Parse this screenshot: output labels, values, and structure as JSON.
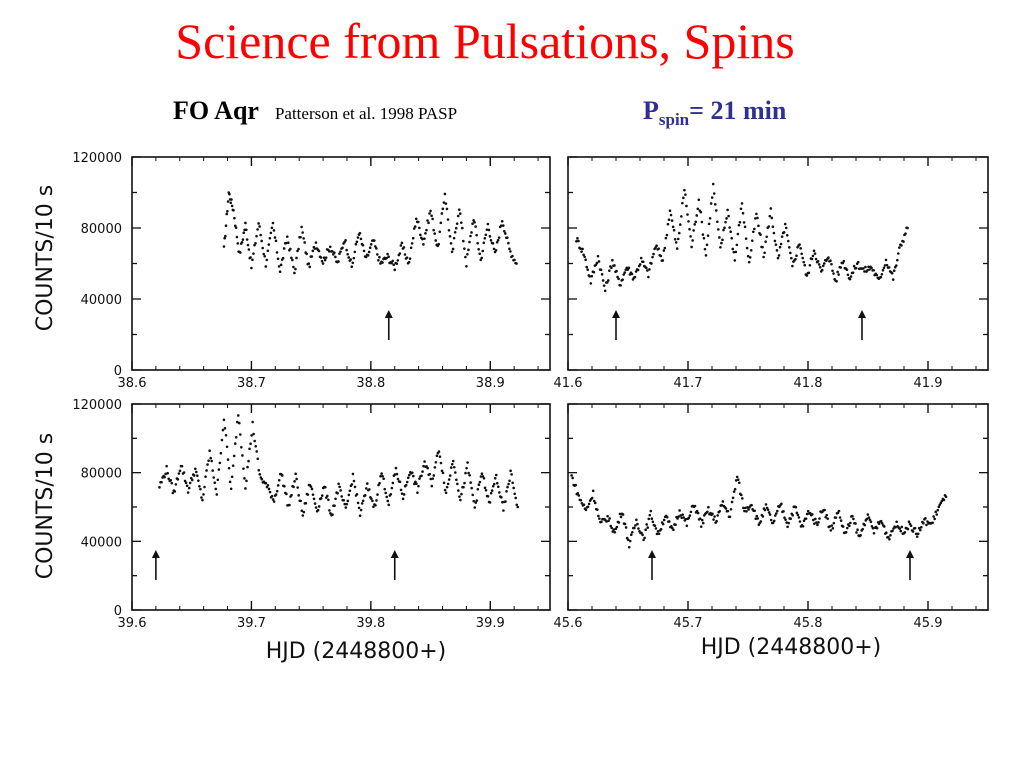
{
  "header": {
    "title": "Science from Pulsations, Spins",
    "object": "FO Aqr",
    "reference": "Patterson et al. 1998 PASP",
    "period_symbol": "P",
    "period_subscript": "spin",
    "period_value": "= 21 min"
  },
  "colors": {
    "title": "#ff0000",
    "period": "#2e3192",
    "ink": "#111111"
  },
  "chart_data": [
    {
      "type": "scatter",
      "panel": "top-left",
      "xlim": [
        38.6,
        38.95
      ],
      "ylim": [
        0,
        120000
      ],
      "xticks": [
        38.6,
        38.7,
        38.8,
        38.9
      ],
      "xtick_labels": [
        "38.6",
        "38.7",
        "38.8",
        "38.9"
      ],
      "yticks": [
        0,
        40000,
        80000,
        120000
      ],
      "ytick_labels": [
        "0",
        "40000",
        "80000",
        "120000"
      ],
      "ylabel": "COUNTS/10  s",
      "arrows_x": [
        38.815
      ],
      "x": [
        38.677,
        38.681,
        38.685,
        38.69,
        38.695,
        38.7,
        38.706,
        38.712,
        38.718,
        38.724,
        38.73,
        38.736,
        38.742,
        38.748,
        38.754,
        38.76,
        38.766,
        38.772,
        38.778,
        38.784,
        38.79,
        38.796,
        38.802,
        38.808,
        38.814,
        38.82,
        38.826,
        38.832,
        38.838,
        38.844,
        38.85,
        38.856,
        38.862,
        38.868,
        38.874,
        38.88,
        38.886,
        38.892,
        38.898,
        38.904,
        38.91,
        38.916,
        38.922
      ],
      "y": [
        68000,
        100000,
        90000,
        65000,
        82000,
        58000,
        83000,
        60000,
        82000,
        56000,
        75000,
        55000,
        80000,
        58000,
        72000,
        61000,
        70000,
        60000,
        74000,
        58000,
        78000,
        62000,
        73000,
        60000,
        64000,
        58000,
        70000,
        60000,
        86000,
        72000,
        90000,
        68000,
        100000,
        65000,
        92000,
        60000,
        86000,
        62000,
        82000,
        65000,
        85000,
        68000,
        60000
      ]
    },
    {
      "type": "scatter",
      "panel": "top-right",
      "xlim": [
        41.6,
        41.95
      ],
      "ylim": [
        0,
        120000
      ],
      "xticks": [
        41.6,
        41.7,
        41.8,
        41.9
      ],
      "xtick_labels": [
        "41.6",
        "41.7",
        "41.8",
        "41.9"
      ],
      "arrows_x": [
        41.64,
        41.845
      ],
      "x": [
        41.607,
        41.613,
        41.619,
        41.625,
        41.631,
        41.637,
        41.643,
        41.649,
        41.655,
        41.661,
        41.667,
        41.673,
        41.679,
        41.685,
        41.691,
        41.697,
        41.703,
        41.709,
        41.715,
        41.721,
        41.727,
        41.733,
        41.739,
        41.745,
        41.751,
        41.757,
        41.763,
        41.769,
        41.775,
        41.781,
        41.787,
        41.793,
        41.799,
        41.805,
        41.811,
        41.817,
        41.823,
        41.829,
        41.835,
        41.841,
        41.847,
        41.853,
        41.859,
        41.865,
        41.871,
        41.877,
        41.883
      ],
      "y": [
        74000,
        66000,
        50000,
        64000,
        45000,
        62000,
        48000,
        58000,
        52000,
        62000,
        54000,
        70000,
        62000,
        90000,
        68000,
        102000,
        70000,
        96000,
        65000,
        104000,
        68000,
        90000,
        62000,
        94000,
        60000,
        88000,
        64000,
        90000,
        62000,
        82000,
        58000,
        72000,
        52000,
        68000,
        55000,
        65000,
        50000,
        62000,
        52000,
        60000,
        56000,
        58000,
        50000,
        62000,
        52000,
        70000,
        80000
      ]
    },
    {
      "type": "scatter",
      "panel": "bottom-left",
      "xlim": [
        39.6,
        39.95
      ],
      "ylim": [
        0,
        120000
      ],
      "xticks": [
        39.6,
        39.7,
        39.8,
        39.9
      ],
      "xtick_labels": [
        "39.6",
        "39.7",
        "39.8",
        "39.9"
      ],
      "yticks": [
        0,
        40000,
        80000,
        120000
      ],
      "ytick_labels": [
        "0",
        "40000",
        "80000",
        "120000"
      ],
      "ylabel": "COUNTS/10  s",
      "arrows_x": [
        39.62,
        39.82
      ],
      "x": [
        39.623,
        39.629,
        39.635,
        39.641,
        39.647,
        39.653,
        39.659,
        39.665,
        39.671,
        39.677,
        39.683,
        39.689,
        39.695,
        39.701,
        39.707,
        39.713,
        39.719,
        39.725,
        39.731,
        39.737,
        39.743,
        39.749,
        39.755,
        39.761,
        39.767,
        39.773,
        39.779,
        39.785,
        39.791,
        39.797,
        39.803,
        39.809,
        39.815,
        39.821,
        39.827,
        39.833,
        39.839,
        39.845,
        39.851,
        39.857,
        39.863,
        39.869,
        39.875,
        39.881,
        39.887,
        39.893,
        39.899,
        39.905,
        39.911,
        39.917,
        39.923
      ],
      "y": [
        72000,
        82000,
        68000,
        85000,
        70000,
        82000,
        64000,
        92000,
        68000,
        112000,
        70000,
        115000,
        72000,
        108000,
        78000,
        72000,
        64000,
        80000,
        60000,
        78000,
        55000,
        74000,
        58000,
        72000,
        55000,
        72000,
        58000,
        78000,
        56000,
        72000,
        60000,
        80000,
        62000,
        82000,
        66000,
        82000,
        70000,
        86000,
        74000,
        94000,
        68000,
        88000,
        64000,
        84000,
        60000,
        80000,
        62000,
        78000,
        58000,
        80000,
        60000
      ]
    },
    {
      "type": "scatter",
      "panel": "bottom-right",
      "xlim": [
        45.6,
        45.95
      ],
      "ylim": [
        0,
        120000
      ],
      "xticks": [
        45.6,
        45.7,
        45.8,
        45.9
      ],
      "xtick_labels": [
        "45.6",
        "45.7",
        "45.8",
        "45.9"
      ],
      "xlabel": "HJD  (2448800+)",
      "arrows_x": [
        45.67,
        45.885
      ],
      "x": [
        45.603,
        45.609,
        45.615,
        45.621,
        45.627,
        45.633,
        45.639,
        45.645,
        45.651,
        45.657,
        45.663,
        45.669,
        45.675,
        45.681,
        45.687,
        45.693,
        45.699,
        45.705,
        45.711,
        45.717,
        45.723,
        45.729,
        45.735,
        45.741,
        45.747,
        45.753,
        45.759,
        45.765,
        45.771,
        45.777,
        45.783,
        45.789,
        45.795,
        45.801,
        45.807,
        45.813,
        45.819,
        45.825,
        45.831,
        45.837,
        45.843,
        45.849,
        45.855,
        45.861,
        45.867,
        45.873,
        45.879,
        45.885,
        45.891,
        45.897,
        45.903,
        45.909,
        45.915
      ],
      "y": [
        78000,
        66000,
        58000,
        68000,
        50000,
        54000,
        45000,
        58000,
        38000,
        52000,
        42000,
        56000,
        44000,
        55000,
        46000,
        58000,
        50000,
        62000,
        50000,
        58000,
        52000,
        62000,
        55000,
        78000,
        58000,
        62000,
        50000,
        60000,
        50000,
        62000,
        50000,
        60000,
        48000,
        58000,
        50000,
        60000,
        46000,
        58000,
        44000,
        54000,
        42000,
        55000,
        46000,
        52000,
        42000,
        50000,
        46000,
        50000,
        44000,
        52000,
        50000,
        60000,
        66000
      ]
    }
  ],
  "axis_titles": {
    "ylabel_top": "COUNTS/10  s",
    "ylabel_bottom": "COUNTS/10  s",
    "xlabel_left": "HJD  (2448800+)",
    "xlabel_right": "HJD  (2448800+)"
  }
}
